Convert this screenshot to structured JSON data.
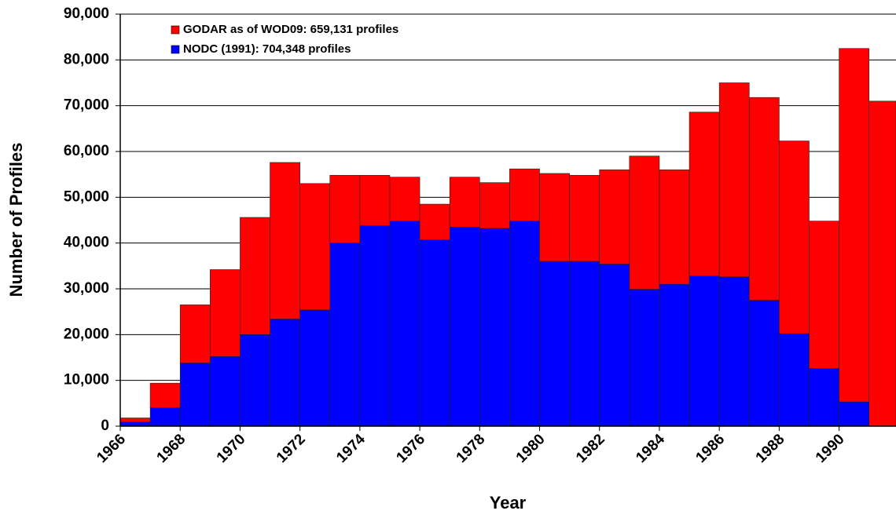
{
  "chart_data": {
    "type": "bar",
    "stacked": true,
    "x_label": "Year",
    "y_label": "Number of Profiles",
    "x": [
      1966,
      1967,
      1968,
      1969,
      1970,
      1971,
      1972,
      1973,
      1974,
      1975,
      1976,
      1977,
      1978,
      1979,
      1980,
      1981,
      1982,
      1983,
      1984,
      1985,
      1986,
      1987,
      1988,
      1989,
      1990,
      1991
    ],
    "xlim": [
      1966,
      1991.9
    ],
    "xticks": [
      1966,
      1968,
      1970,
      1972,
      1974,
      1976,
      1978,
      1980,
      1982,
      1984,
      1986,
      1988,
      1990
    ],
    "ylim": [
      0,
      90000
    ],
    "yticks": [
      0,
      {
        "value": 10000,
        "label": "10,000"
      },
      {
        "value": 20000,
        "label": "20,000"
      },
      {
        "value": 30000,
        "label": "30,000"
      },
      {
        "value": 40000,
        "label": "40,000"
      },
      {
        "value": 50000,
        "label": "50,000"
      },
      {
        "value": 60000,
        "label": "60,000"
      },
      {
        "value": 70000,
        "label": "70,000"
      },
      {
        "value": 80000,
        "label": "80,000"
      },
      {
        "value": 90000,
        "label": "90,000"
      }
    ],
    "grid": true,
    "legend": "top-left",
    "series": [
      {
        "name": "GODAR as of WOD09: 659,131 profiles",
        "color": "#ff0000",
        "values": [
          900,
          5400,
          12700,
          19000,
          25600,
          34200,
          27600,
          14800,
          11000,
          9600,
          7800,
          10900,
          10000,
          11400,
          19200,
          18800,
          20600,
          29100,
          25000,
          35800,
          42400,
          44300,
          42100,
          32200,
          77200,
          71000
        ]
      },
      {
        "name": "NODC (1991): 704,348 profiles",
        "color": "#0000ff",
        "values": [
          900,
          4000,
          13800,
          15200,
          20000,
          23400,
          25400,
          40000,
          43800,
          44800,
          40700,
          43500,
          43200,
          44800,
          36000,
          36000,
          35400,
          29900,
          31000,
          32800,
          32600,
          27500,
          20200,
          12600,
          5300,
          0
        ]
      }
    ]
  }
}
